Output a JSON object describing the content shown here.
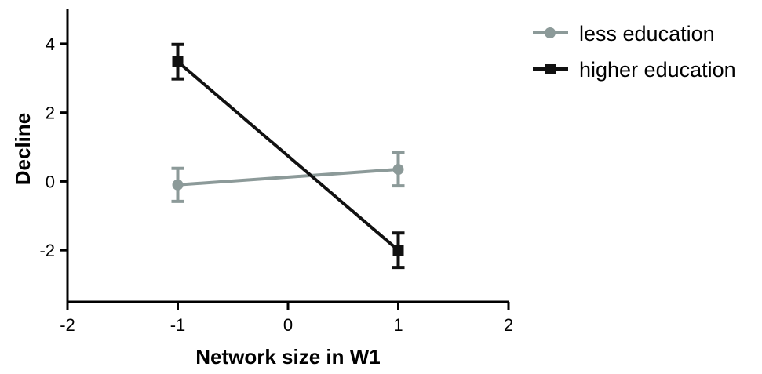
{
  "chart_data": {
    "type": "line",
    "xlabel": "Network size in W1",
    "ylabel": "Decline",
    "xlim": [
      -2,
      2
    ],
    "ylim": [
      -3.5,
      5
    ],
    "x_ticks": [
      -2,
      -1,
      0,
      1,
      2
    ],
    "y_ticks": [
      4,
      2,
      0,
      -2
    ],
    "x_tick_labels": [
      "-2",
      "-1",
      "0",
      "1",
      "2"
    ],
    "y_tick_labels": [
      "4",
      "2",
      "0",
      "-2"
    ],
    "grid": false,
    "legend_position": "right",
    "series": [
      {
        "name": "less education",
        "color": "#8c9a99",
        "marker": "circle",
        "x": [
          -1,
          1
        ],
        "y": [
          -0.1,
          0.35
        ],
        "error": [
          0.48,
          0.48
        ]
      },
      {
        "name": "higher education",
        "color": "#111111",
        "marker": "square",
        "x": [
          -1,
          1
        ],
        "y": [
          3.48,
          -2.0
        ],
        "error": [
          0.5,
          0.5
        ]
      }
    ]
  }
}
